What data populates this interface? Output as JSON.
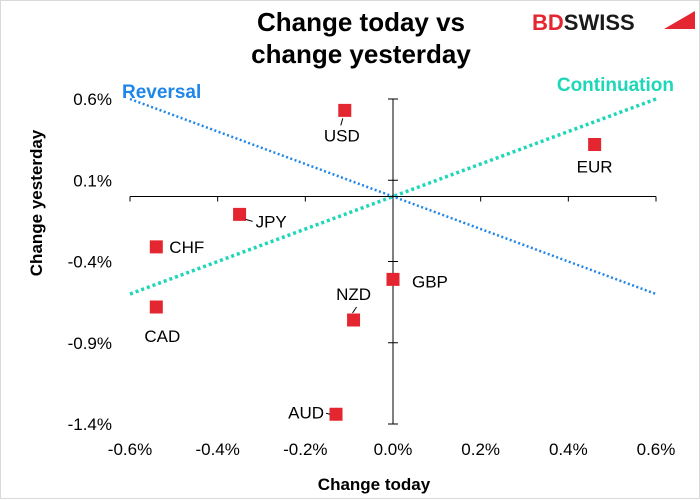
{
  "logo": {
    "part1": "BD",
    "part2": "SWISS"
  },
  "chart_data": {
    "type": "scatter",
    "title_lines": [
      "Change today vs",
      "change yesterday"
    ],
    "xlabel": "Change today",
    "ylabel": "Change yesterday",
    "xlim": [
      -0.6,
      0.6
    ],
    "ylim": [
      -1.4,
      0.6
    ],
    "x_ticks": [
      -0.6,
      -0.4,
      -0.2,
      0.0,
      0.2,
      0.4,
      0.6
    ],
    "x_tick_labels": [
      "-0.6%",
      "-0.4%",
      "-0.2%",
      "0.0%",
      "0.2%",
      "0.4%",
      "0.6%"
    ],
    "y_ticks": [
      0.6,
      0.1,
      -0.4,
      -0.9,
      -1.4
    ],
    "y_tick_labels": [
      "0.6%",
      "0.1%",
      "-0.4%",
      "-0.9%",
      "-1.4%"
    ],
    "y_axis_crosses_x_at": 0.0,
    "x_axis_crosses_y_at": 0.0,
    "marker_color": "#e3262f",
    "points": [
      {
        "label": "USD",
        "x": -0.11,
        "y": 0.53
      },
      {
        "label": "EUR",
        "x": 0.46,
        "y": 0.32
      },
      {
        "label": "JPY",
        "x": -0.35,
        "y": -0.11
      },
      {
        "label": "CHF",
        "x": -0.54,
        "y": -0.31
      },
      {
        "label": "GBP",
        "x": 0.0,
        "y": -0.51
      },
      {
        "label": "NZD",
        "x": -0.09,
        "y": -0.76
      },
      {
        "label": "CAD",
        "x": -0.54,
        "y": -0.68
      },
      {
        "label": "AUD",
        "x": -0.13,
        "y": -1.34
      }
    ],
    "trend_lines": [
      {
        "name": "Reversal",
        "color": "#1e86e8",
        "from": [
          -0.6,
          0.6
        ],
        "to": [
          0.6,
          -0.6
        ]
      },
      {
        "name": "Continuation",
        "color": "#1ed6b8",
        "from": [
          -0.6,
          -0.6
        ],
        "to": [
          0.6,
          0.6
        ]
      }
    ]
  }
}
